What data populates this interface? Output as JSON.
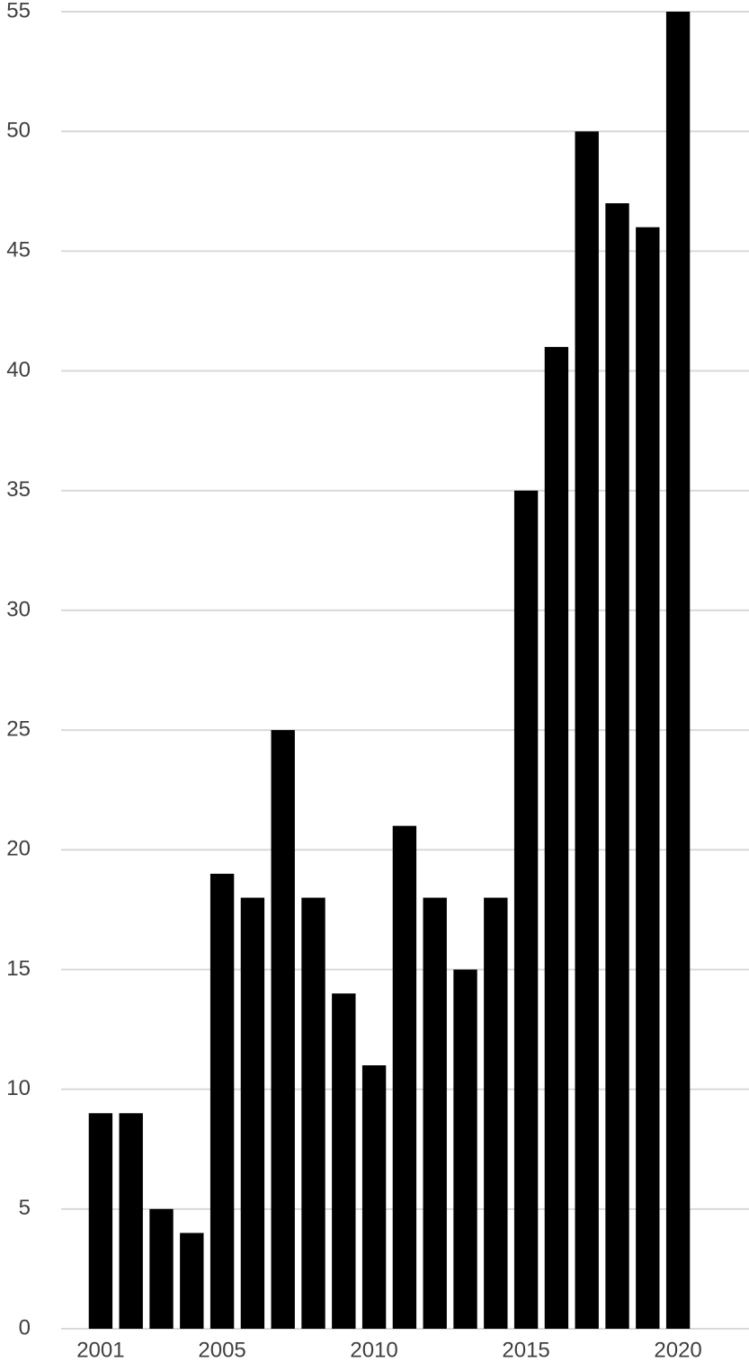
{
  "chart_data": {
    "type": "bar",
    "categories": [
      "2001",
      null,
      null,
      null,
      "2005",
      null,
      null,
      null,
      null,
      "2010",
      null,
      null,
      null,
      null,
      "2015",
      null,
      null,
      null,
      null,
      "2020"
    ],
    "values": [
      9,
      9,
      5,
      4,
      19,
      18,
      25,
      18,
      14,
      11,
      21,
      18,
      15,
      18,
      35,
      41,
      50,
      47,
      46,
      55
    ],
    "color": "#000000",
    "ylim": [
      0,
      55
    ],
    "yticks": [
      0,
      5,
      10,
      15,
      20,
      25,
      30,
      35,
      40,
      45,
      50,
      55
    ],
    "grid": true
  }
}
